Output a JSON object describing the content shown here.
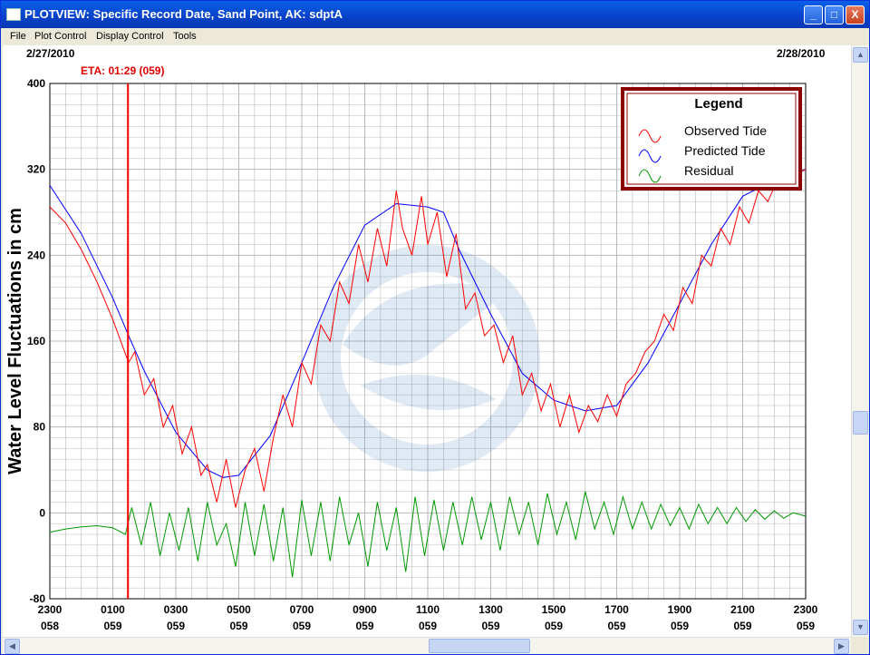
{
  "window": {
    "title": "PLOTVIEW: Specific Record Date, Sand Point, AK: sdptA"
  },
  "titlebar_buttons": {
    "minimize": "_",
    "maximize": "□",
    "close": "X"
  },
  "menu": [
    "File",
    "Plot Control",
    "Display Control",
    "Tools"
  ],
  "plot": {
    "date_left": "2/27/2010",
    "date_right": "2/28/2010",
    "eta_label": "ETA: 01:29 (059)",
    "ylabel": "Water Level Fluctuations in cm"
  },
  "legend": {
    "title": "Legend",
    "items": [
      {
        "label": "Observed Tide",
        "color": "#FF0000"
      },
      {
        "label": "Predicted Tide",
        "color": "#0000FF"
      },
      {
        "label": "Residual",
        "color": "#009900"
      }
    ]
  },
  "chart_data": {
    "type": "line",
    "ylabel": "Water Level Fluctuations in cm",
    "ylim": [
      -80,
      400
    ],
    "yticks": [
      "400",
      "320",
      "240",
      "160",
      "80",
      "0",
      "-80"
    ],
    "xticks": [
      {
        "time": "2300",
        "day": "058"
      },
      {
        "time": "0100",
        "day": "059"
      },
      {
        "time": "0300",
        "day": "059"
      },
      {
        "time": "0500",
        "day": "059"
      },
      {
        "time": "0700",
        "day": "059"
      },
      {
        "time": "0900",
        "day": "059"
      },
      {
        "time": "1100",
        "day": "059"
      },
      {
        "time": "1300",
        "day": "059"
      },
      {
        "time": "1500",
        "day": "059"
      },
      {
        "time": "1700",
        "day": "059"
      },
      {
        "time": "1900",
        "day": "059"
      },
      {
        "time": "2100",
        "day": "059"
      },
      {
        "time": "2300",
        "day": "059"
      }
    ],
    "xlim_hours": [
      0,
      24
    ],
    "eta_hours": 2.48,
    "series": [
      {
        "name": "Predicted Tide",
        "color": "#0000FF",
        "x": [
          0,
          1,
          2,
          2.5,
          3,
          4,
          5,
          5.5,
          6,
          7,
          8,
          9,
          10,
          11,
          12,
          12.5,
          13,
          14,
          15,
          16,
          17,
          18,
          19,
          20,
          21,
          22,
          23,
          24
        ],
        "y": [
          305,
          260,
          200,
          165,
          132,
          75,
          40,
          33,
          35,
          72,
          140,
          210,
          268,
          288,
          285,
          280,
          245,
          185,
          130,
          105,
          95,
          100,
          140,
          195,
          250,
          295,
          310,
          320
        ]
      },
      {
        "name": "Observed Tide",
        "color": "#FF0000",
        "x": [
          0,
          0.5,
          1,
          1.5,
          2,
          2.5,
          2.7,
          3,
          3.3,
          3.6,
          3.9,
          4.2,
          4.5,
          4.8,
          5,
          5.3,
          5.6,
          5.9,
          6.2,
          6.5,
          6.8,
          7.1,
          7.4,
          7.7,
          8,
          8.3,
          8.6,
          8.9,
          9.2,
          9.5,
          9.8,
          10.1,
          10.4,
          10.7,
          11,
          11.2,
          11.5,
          11.8,
          12,
          12.3,
          12.6,
          12.9,
          13.2,
          13.5,
          13.8,
          14.1,
          14.4,
          14.7,
          15,
          15.3,
          15.6,
          15.9,
          16.2,
          16.5,
          16.8,
          17.1,
          17.4,
          17.7,
          18,
          18.3,
          18.6,
          18.9,
          19.2,
          19.5,
          19.8,
          20.1,
          20.4,
          20.7,
          21,
          21.3,
          21.6,
          21.9,
          22.2,
          22.5,
          22.8,
          23.1,
          23.4,
          23.7,
          24
        ],
        "y": [
          285,
          270,
          245,
          215,
          180,
          140,
          150,
          110,
          125,
          80,
          100,
          55,
          80,
          35,
          45,
          10,
          50,
          5,
          40,
          60,
          20,
          70,
          110,
          80,
          140,
          120,
          175,
          160,
          215,
          195,
          250,
          215,
          265,
          230,
          300,
          265,
          240,
          295,
          250,
          280,
          220,
          260,
          190,
          205,
          165,
          175,
          140,
          165,
          110,
          130,
          95,
          120,
          80,
          110,
          75,
          100,
          85,
          110,
          90,
          120,
          130,
          150,
          160,
          185,
          170,
          210,
          195,
          240,
          230,
          265,
          250,
          285,
          270,
          300,
          290,
          310,
          305,
          315,
          320
        ]
      },
      {
        "name": "Residual",
        "color": "#009900",
        "x": [
          0,
          0.5,
          1,
          1.5,
          2,
          2.4,
          2.6,
          2.9,
          3.2,
          3.5,
          3.8,
          4.1,
          4.4,
          4.7,
          5,
          5.3,
          5.6,
          5.9,
          6.2,
          6.5,
          6.8,
          7.1,
          7.4,
          7.7,
          8,
          8.3,
          8.6,
          8.9,
          9.2,
          9.5,
          9.8,
          10.1,
          10.4,
          10.7,
          11,
          11.3,
          11.6,
          11.9,
          12.2,
          12.5,
          12.8,
          13.1,
          13.4,
          13.7,
          14,
          14.3,
          14.6,
          14.9,
          15.2,
          15.5,
          15.8,
          16.1,
          16.4,
          16.7,
          17,
          17.3,
          17.6,
          17.9,
          18.2,
          18.5,
          18.8,
          19.1,
          19.4,
          19.7,
          20,
          20.3,
          20.6,
          20.9,
          21.2,
          21.5,
          21.8,
          22.1,
          22.4,
          22.7,
          23,
          23.3,
          23.6,
          24
        ],
        "y": [
          -18,
          -15,
          -13,
          -12,
          -14,
          -20,
          5,
          -30,
          10,
          -40,
          0,
          -35,
          5,
          -45,
          10,
          -30,
          -10,
          -50,
          10,
          -40,
          8,
          -45,
          5,
          -60,
          12,
          -40,
          10,
          -45,
          15,
          -30,
          0,
          -50,
          10,
          -35,
          5,
          -55,
          15,
          -40,
          12,
          -35,
          10,
          -30,
          15,
          -25,
          10,
          -35,
          15,
          -20,
          10,
          -30,
          18,
          -20,
          10,
          -25,
          20,
          -15,
          10,
          -20,
          15,
          -15,
          10,
          -15,
          8,
          -12,
          5,
          -15,
          8,
          -10,
          5,
          -10,
          5,
          -8,
          3,
          -6,
          2,
          -5,
          0,
          -3
        ]
      }
    ]
  }
}
